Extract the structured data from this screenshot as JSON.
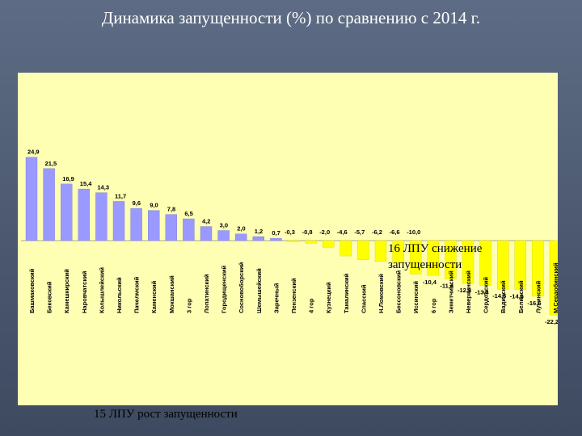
{
  "slide": {
    "title": "Динамика запущенности (%) по сравнению с 2014 г."
  },
  "annotations": {
    "decrease": "16 ЛПУ снижение запущенности",
    "increase": "15 ЛПУ рост запущенности"
  },
  "colors": {
    "background": "#4b5870",
    "plot_area": "#ffffb4",
    "positive_bar": "#9999ff",
    "negative_bar": "#ffff00",
    "title_text": "#ffffff"
  },
  "chart_data": {
    "type": "bar",
    "title": "Динамика запущенности (%) по сравнению с 2014 г.",
    "xlabel": "",
    "ylabel": "",
    "ylim": [
      -23,
      26
    ],
    "grid": false,
    "legend": "none",
    "categories": [
      "Башмаковский",
      "Бековский",
      "Камешкирский",
      "Наровчатский",
      "Колышлейский",
      "Никольский",
      "Пачелмский",
      "Каменский",
      "Мокшанский",
      "3 гор",
      "Лопатинский",
      "Городищенский",
      "Сосновоборский",
      "Шемышейский",
      "Заречный",
      "Пензенский",
      "4 гор",
      "Кузнецкий",
      "Тамалинский",
      "Спасский",
      "Н.Ломовский",
      "Бессоновский",
      "Иссинский",
      "6 гор",
      "Земетчинский",
      "Неверкинский",
      "Сердобский",
      "Вадинский",
      "Белинский",
      "Лунинский",
      "М.Сердобинский"
    ],
    "values": [
      24.9,
      21.5,
      16.9,
      15.4,
      14.3,
      11.7,
      9.6,
      9.0,
      7.8,
      6.5,
      4.2,
      3.0,
      2.0,
      1.2,
      0.7,
      -0.3,
      -0.8,
      -2.0,
      -4.6,
      -5.7,
      -6.2,
      -6.6,
      -10.0,
      -10.4,
      -11.4,
      -12.8,
      -13.4,
      -14.5,
      -14.6,
      -16.6,
      -22.2
    ],
    "labels": [
      "24,9",
      "21,5",
      "16,9",
      "15,4",
      "14,3",
      "11,7",
      "9,6",
      "9,0",
      "7,8",
      "6,5",
      "4,2",
      "3,0",
      "2,0",
      "1,2",
      "0,7",
      "-0,3",
      "-0,8",
      "-2,0",
      "-4,6",
      "-5,7",
      "-6,2",
      "-6,6",
      "-10,0",
      "-10,4",
      "-11,4",
      "-12,8",
      "-13,4",
      "-14,5",
      "-14,6",
      "-16,6",
      "-22,2"
    ]
  }
}
